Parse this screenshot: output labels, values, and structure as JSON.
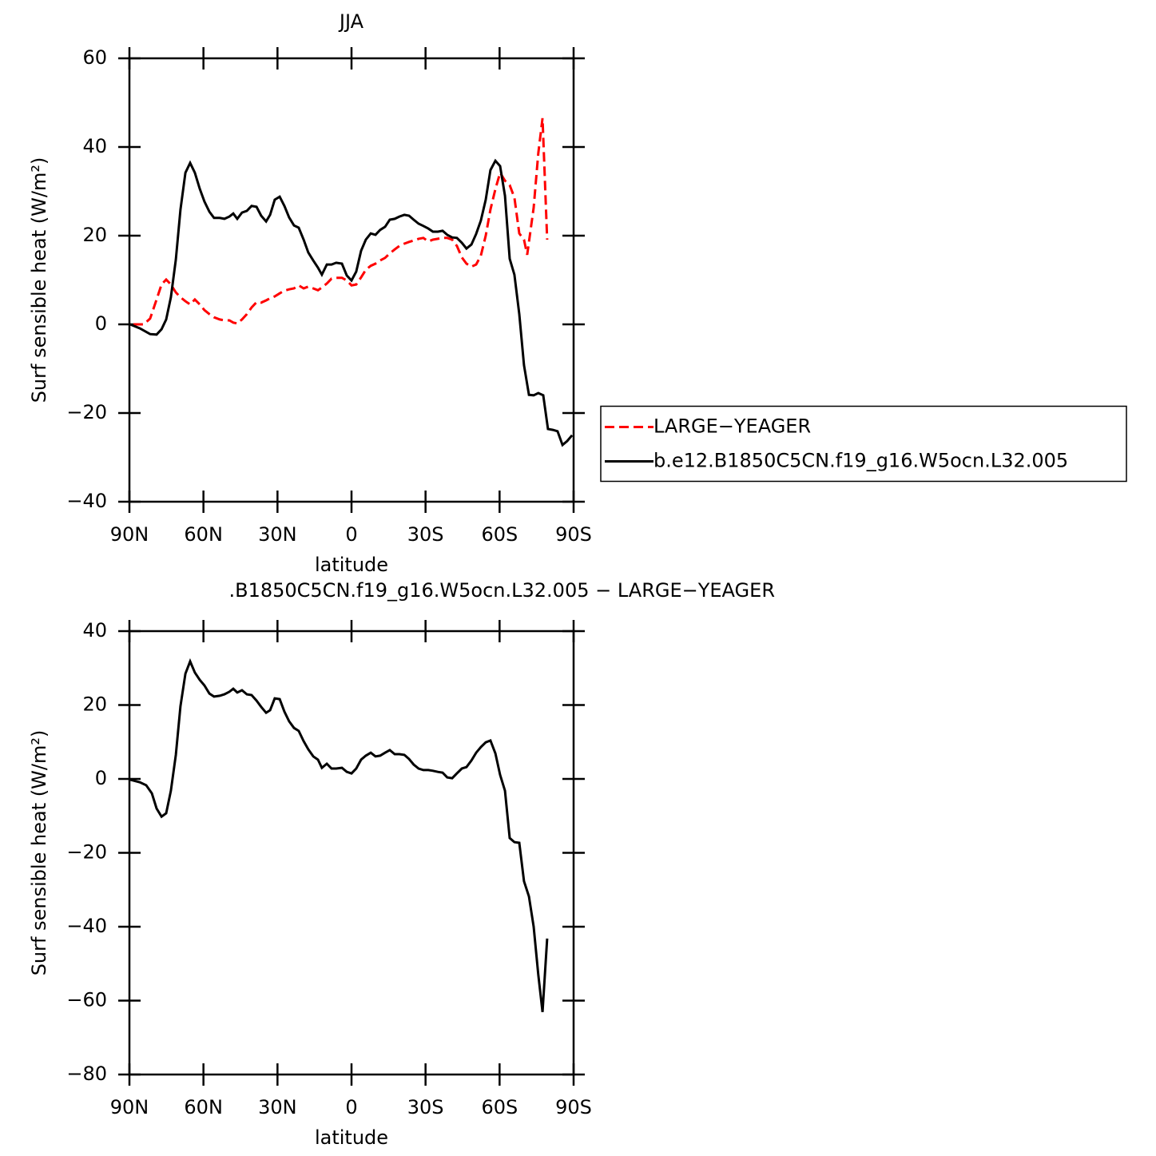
{
  "chart_data": [
    {
      "type": "line",
      "title": "JJA",
      "x_label": "latitude",
      "y_label": "Surf sensible heat (W/m²)",
      "xlim": [
        90,
        -90
      ],
      "xticks": [
        {
          "value": 90,
          "label": "90N"
        },
        {
          "value": 60,
          "label": "60N"
        },
        {
          "value": 30,
          "label": "30N"
        },
        0,
        {
          "value": -30,
          "label": "30S"
        },
        {
          "value": -60,
          "label": "60S"
        },
        {
          "value": -90,
          "label": "90S"
        }
      ],
      "ylim": [
        -40,
        60
      ],
      "yticks": [
        {
          "value": -40,
          "label": "−40"
        },
        {
          "value": -20,
          "label": "−20"
        },
        0,
        20,
        40,
        60
      ],
      "legend": "right",
      "series": [
        {
          "name": "LARGE−YEAGER",
          "color": "#ff0000",
          "style": "dashed",
          "x": [
            88.4,
            84.2,
            81.6,
            79,
            77,
            75.1,
            73.2,
            71.2,
            69.3,
            67.3,
            65.4,
            63.5,
            61.5,
            59.6,
            57.6,
            55.7,
            53.4,
            51.5,
            49.5,
            47.9,
            46.3,
            44.4,
            42.4,
            40.5,
            38.5,
            36.6,
            34.6,
            33,
            31.1,
            29.1,
            27.2,
            25.3,
            23.3,
            21.4,
            19.4,
            17.5,
            15.5,
            13.6,
            12,
            10,
            8.1,
            6.2,
            3.9,
            1.9,
            0,
            -1.9,
            -3.9,
            -5.8,
            -7.8,
            -9.7,
            -11.6,
            -13.6,
            -15.5,
            -17.5,
            -19.4,
            -21.4,
            -23.3,
            -25.2,
            -27.2,
            -29.1,
            -31.1,
            -33,
            -35,
            -36.9,
            -38.8,
            -40.8,
            -42.7,
            -44.7,
            -46.6,
            -48.6,
            -50.5,
            -52.4,
            -54.4,
            -56.3,
            -58.3,
            -60.2,
            -62.2,
            -64.1,
            -66,
            -68,
            -69.9,
            -71.2,
            -73.8,
            -75.7,
            -77.4,
            -79.3
          ],
          "values": [
            0,
            0,
            1.3,
            5.6,
            9,
            10.1,
            9,
            7.2,
            6.1,
            5.2,
            4.5,
            5.6,
            4.5,
            3.2,
            2.3,
            1.6,
            1.1,
            0.9,
            0.9,
            0.4,
            0.2,
            1.1,
            2.3,
            3.8,
            5,
            4.9,
            5.4,
            5.9,
            6.3,
            7,
            7.6,
            7.9,
            8.1,
            8.8,
            8.1,
            8.5,
            8.1,
            7.7,
            8.3,
            9.2,
            10.3,
            10.5,
            10.5,
            9.9,
            8.8,
            9,
            10.6,
            12.3,
            13.2,
            13.7,
            14.4,
            15,
            16,
            16.9,
            17.7,
            18.2,
            18.6,
            18.9,
            19.3,
            19.5,
            18.7,
            19.1,
            19.3,
            19.5,
            19.5,
            19.1,
            17.7,
            15.1,
            13.7,
            13,
            13.5,
            15.5,
            20,
            25.9,
            30.5,
            34.2,
            32.4,
            31.4,
            28.6,
            20.5,
            19.1,
            15.7,
            26.3,
            38.6,
            46.5,
            19.1
          ]
        },
        {
          "name": "b.e12.B1850C5CN.f19_g16.W5ocn.L32.005",
          "color": "#000000",
          "style": "solid",
          "x": [
            89.7,
            85.8,
            81.6,
            79,
            77,
            75.1,
            73.2,
            71.2,
            69.3,
            67.3,
            65.4,
            63.5,
            61.5,
            59.6,
            57.6,
            55.7,
            53.4,
            51.5,
            49.5,
            47.9,
            46.3,
            44.4,
            42.4,
            40.5,
            38.5,
            36.6,
            34.6,
            33,
            31.1,
            29.1,
            27.2,
            25.3,
            23.3,
            21.4,
            19.4,
            17.5,
            15.5,
            13.6,
            12,
            10,
            8.1,
            6.2,
            3.9,
            1.9,
            0,
            -1.9,
            -3.9,
            -5.8,
            -7.8,
            -9.7,
            -11.6,
            -13.6,
            -15.5,
            -17.5,
            -19.4,
            -21.4,
            -23.3,
            -25.2,
            -27.2,
            -29.1,
            -31.1,
            -33,
            -35,
            -36.9,
            -38.8,
            -40.8,
            -42.7,
            -44.7,
            -46.6,
            -48.6,
            -50.5,
            -52.4,
            -54.4,
            -56.3,
            -58.3,
            -60.2,
            -62.2,
            -64.1,
            -66,
            -68,
            -69.9,
            -71.9,
            -73.8,
            -75.7,
            -77.7,
            -79.6,
            -81.6,
            -83.5,
            -85.5,
            -87.4,
            -89.4
          ],
          "values": [
            0,
            -0.9,
            -2.2,
            -2.3,
            -1.1,
            1.1,
            6.1,
            14.6,
            25.9,
            34.2,
            36.4,
            34.2,
            30.6,
            27.7,
            25.4,
            24,
            24,
            23.8,
            24.3,
            25,
            23.8,
            25.2,
            25.6,
            26.7,
            26.5,
            24.5,
            23.2,
            24.7,
            28.1,
            28.8,
            26.7,
            24.1,
            22.3,
            21.8,
            19.1,
            16.2,
            14.4,
            12.8,
            11.2,
            13.5,
            13.5,
            13.9,
            13.7,
            11,
            9.9,
            11.9,
            16.6,
            19.1,
            20.5,
            20.2,
            21.3,
            22,
            23.6,
            23.8,
            24.3,
            24.7,
            24.5,
            23.6,
            22.7,
            22.2,
            21.6,
            20.9,
            20.9,
            21.1,
            20.2,
            19.6,
            19.5,
            18.4,
            17.1,
            18,
            20.4,
            23.4,
            28.1,
            34.8,
            36.9,
            35.7,
            29,
            14.8,
            11.2,
            2.3,
            -9.2,
            -15.9,
            -16,
            -15.5,
            -16,
            -23.6,
            -23.8,
            -24.1,
            -27.2,
            -26.3,
            -25
          ]
        }
      ]
    },
    {
      "type": "line",
      "title": ".B1850C5CN.f19_g16.W5ocn.L32.005 − LARGE−YEAGER",
      "x_label": "latitude",
      "y_label": "Surf sensible heat (W/m²)",
      "xlim": [
        90,
        -90
      ],
      "xticks": [
        {
          "value": 90,
          "label": "90N"
        },
        {
          "value": 60,
          "label": "60N"
        },
        {
          "value": 30,
          "label": "30N"
        },
        0,
        {
          "value": -30,
          "label": "30S"
        },
        {
          "value": -60,
          "label": "60S"
        },
        {
          "value": -90,
          "label": "90S"
        }
      ],
      "ylim": [
        -80,
        40
      ],
      "yticks": [
        {
          "value": -80,
          "label": "−80"
        },
        {
          "value": -60,
          "label": "−60"
        },
        {
          "value": -40,
          "label": "−40"
        },
        {
          "value": -20,
          "label": "−20"
        },
        0,
        20,
        40
      ],
      "color": "#000000",
      "x": [
        89.7,
        85.8,
        83.2,
        80.9,
        79,
        77,
        75.1,
        73.2,
        71.2,
        69.3,
        67.3,
        65.4,
        63.5,
        61.5,
        59.6,
        57.6,
        55.7,
        53.4,
        51.5,
        49.5,
        47.9,
        46.3,
        44.4,
        42.4,
        40.5,
        38.5,
        36.6,
        34.6,
        33,
        31.1,
        29.1,
        27.2,
        25.3,
        23.3,
        21.4,
        19.4,
        17.5,
        15.5,
        13.6,
        12,
        10,
        8.1,
        6.2,
        3.9,
        1.9,
        0,
        -1.9,
        -3.9,
        -5.8,
        -7.8,
        -9.7,
        -11.6,
        -13.6,
        -15.5,
        -17.5,
        -19.4,
        -21.4,
        -23.3,
        -25.2,
        -27.2,
        -29.1,
        -31.1,
        -33,
        -35,
        -36.9,
        -38.8,
        -40.8,
        -42.7,
        -44.7,
        -46.6,
        -48.6,
        -50.5,
        -52.4,
        -54.4,
        -56.3,
        -58.3,
        -60.2,
        -62.2,
        -64.1,
        -66,
        -68,
        -69.9,
        -71.9,
        -73.8,
        -75.7,
        -77.4,
        -79.3
      ],
      "values": [
        -0.2,
        -0.9,
        -1.7,
        -3.9,
        -8,
        -10.2,
        -9.3,
        -3.2,
        6.5,
        19.7,
        28.5,
        31.8,
        28.8,
        26.8,
        25.3,
        23.1,
        22.3,
        22.5,
        22.9,
        23.6,
        24.4,
        23.4,
        24,
        22.9,
        22.7,
        21.2,
        19.5,
        17.9,
        18.6,
        21.8,
        21.6,
        18.2,
        15.6,
        13.8,
        13,
        10.2,
        8,
        6.1,
        5.2,
        3,
        4.1,
        2.8,
        2.8,
        3,
        1.9,
        1.5,
        2.8,
        5.2,
        6.3,
        7.1,
        6.1,
        6.3,
        7.1,
        7.8,
        6.7,
        6.7,
        6.5,
        5.4,
        3.9,
        2.8,
        2.4,
        2.4,
        2.2,
        1.9,
        1.7,
        0.4,
        0.2,
        1.5,
        2.8,
        3.2,
        5,
        7.1,
        8.6,
        9.9,
        10.4,
        6.9,
        1.1,
        -3.2,
        -16,
        -17.1,
        -17.3,
        -27.7,
        -31.8,
        -40,
        -53,
        -63.1,
        -43.2
      ]
    }
  ]
}
